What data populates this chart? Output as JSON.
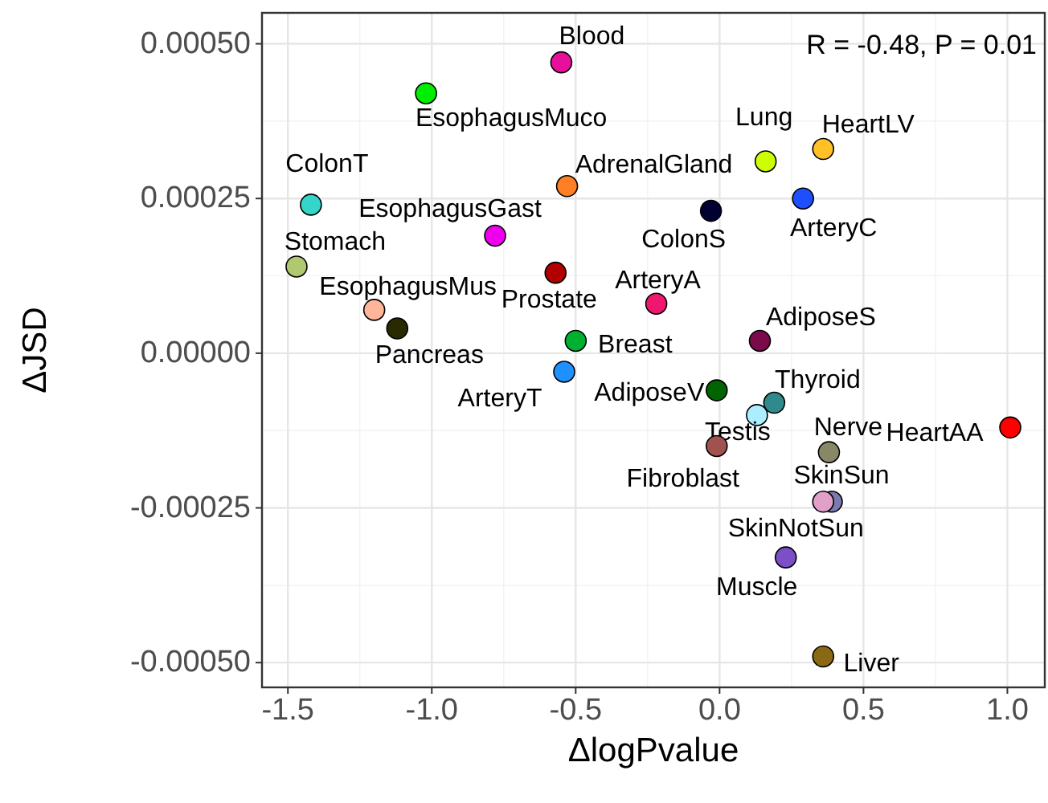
{
  "chart_data": {
    "type": "scatter",
    "xlabel": "ΔlogPvalue",
    "ylabel": "ΔJSD",
    "annotations": [
      "R = -0.48, P = 0.01"
    ],
    "xlim": [
      -1.59,
      1.13
    ],
    "ylim": [
      -0.00054,
      0.00055
    ],
    "xticks": [
      {
        "value": -1.5,
        "label": "-1.5"
      },
      {
        "value": -1,
        "label": "-1.0"
      },
      {
        "value": -0.5,
        "label": "-0.5"
      },
      {
        "value": 0,
        "label": "0.0"
      },
      {
        "value": 0.5,
        "label": "0.5"
      },
      {
        "value": 1,
        "label": "1.0"
      }
    ],
    "yticks": [
      {
        "value": -0.0005,
        "label": "-0.00050"
      },
      {
        "value": -0.00025,
        "label": "-0.00025"
      },
      {
        "value": 0,
        "label": "0.00000"
      },
      {
        "value": 0.00025,
        "label": "0.00025"
      },
      {
        "value": 0.0005,
        "label": "0.00050"
      }
    ],
    "grid": true,
    "legend": false,
    "marker": "circle",
    "series": [
      {
        "name": "Blood",
        "color": "#e8109a",
        "x": [
          -0.55
        ],
        "values": [
          0.00047
        ]
      },
      {
        "name": "EsophagusMuco",
        "color": "#00ee00",
        "x": [
          -1.02
        ],
        "values": [
          0.00042
        ]
      },
      {
        "name": "ColonT",
        "color": "#33d6c8",
        "x": [
          -1.42
        ],
        "values": [
          0.00024
        ]
      },
      {
        "name": "Stomach",
        "color": "#b0c870",
        "x": [
          -1.47
        ],
        "values": [
          0.00014
        ]
      },
      {
        "name": "EsophagusGast",
        "color": "#ee00ee",
        "x": [
          -0.78
        ],
        "values": [
          0.00019
        ]
      },
      {
        "name": "AdrenalGland",
        "color": "#ff7f24",
        "x": [
          -0.53
        ],
        "values": [
          0.00027
        ]
      },
      {
        "name": "ColonS",
        "color": "#000033",
        "x": [
          -0.03
        ],
        "values": [
          0.00023
        ]
      },
      {
        "name": "Lung",
        "color": "#ccff00",
        "x": [
          0.16
        ],
        "values": [
          0.00031
        ]
      },
      {
        "name": "HeartLV",
        "color": "#ffc125",
        "x": [
          0.36
        ],
        "values": [
          0.00033
        ]
      },
      {
        "name": "ArteryC",
        "color": "#1e4fff",
        "x": [
          0.29
        ],
        "values": [
          0.00025
        ]
      },
      {
        "name": "Prostate",
        "color": "#b00000",
        "x": [
          -0.57
        ],
        "values": [
          0.00013
        ]
      },
      {
        "name": "EsophagusMus",
        "color": "#ffb59a",
        "x": [
          -1.2
        ],
        "values": [
          7e-05
        ]
      },
      {
        "name": "Pancreas",
        "color": "#2a2a00",
        "x": [
          -1.12
        ],
        "values": [
          4e-05
        ]
      },
      {
        "name": "ArteryA",
        "color": "#f0186e",
        "x": [
          -0.22
        ],
        "values": [
          8e-05
        ]
      },
      {
        "name": "Breast",
        "color": "#00b030",
        "x": [
          -0.5
        ],
        "values": [
          2e-05
        ]
      },
      {
        "name": "AdiposeS",
        "color": "#7a0a4a",
        "x": [
          0.14
        ],
        "values": [
          2e-05
        ]
      },
      {
        "name": "ArteryT",
        "color": "#1e90ff",
        "x": [
          -0.54
        ],
        "values": [
          -3e-05
        ]
      },
      {
        "name": "AdiposeV",
        "color": "#006400",
        "x": [
          -0.01
        ],
        "values": [
          -6e-05
        ]
      },
      {
        "name": "Thyroid",
        "color": "#2f8b8b",
        "x": [
          0.19
        ],
        "values": [
          -8e-05
        ]
      },
      {
        "name": "Testis",
        "color": "#aaeeff",
        "x": [
          0.13
        ],
        "values": [
          -0.0001
        ]
      },
      {
        "name": "Fibroblast",
        "color": "#a0524e",
        "x": [
          -0.01
        ],
        "values": [
          -0.00015
        ]
      },
      {
        "name": "Nerve",
        "color": "#888866",
        "x": [
          0.38
        ],
        "values": [
          -0.00016
        ]
      },
      {
        "name": "HeartAA",
        "color": "#ff0000",
        "x": [
          1.01
        ],
        "values": [
          -0.00012
        ]
      },
      {
        "name": "SkinSun",
        "color": "#7a7ab0",
        "x": [
          0.39
        ],
        "values": [
          -0.00024
        ]
      },
      {
        "name": "SkinNotSun",
        "color": "#e0a0c8",
        "x": [
          0.36
        ],
        "values": [
          -0.00024
        ]
      },
      {
        "name": "Muscle",
        "color": "#7a4fc8",
        "x": [
          0.23
        ],
        "values": [
          -0.00033
        ]
      },
      {
        "name": "Liver",
        "color": "#8b6914",
        "x": [
          0.36
        ],
        "values": [
          -0.00049
        ]
      }
    ]
  }
}
